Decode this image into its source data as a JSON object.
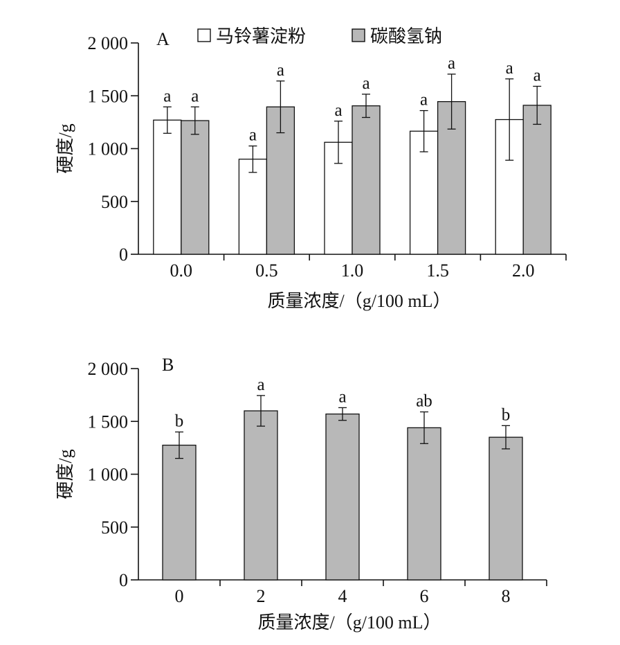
{
  "colors": {
    "series_white": "#ffffff",
    "series_gray": "#b8b8b8",
    "axis": "#111111"
  },
  "chart_data": [
    {
      "type": "bar",
      "panel_label": "A",
      "categories": [
        "0.0",
        "0.5",
        "1.0",
        "1.5",
        "2.0"
      ],
      "xlabel": "质量浓度/（g/100 mL）",
      "ylabel": "硬度/g",
      "ylim": [
        0,
        2000
      ],
      "yticks": [
        0,
        500,
        1000,
        1500,
        2000
      ],
      "ytick_labels": [
        "0",
        "500",
        "1 000",
        "1 500",
        "2 000"
      ],
      "legend_position": "top",
      "series": [
        {
          "name": "马铃薯淀粉",
          "color": "#ffffff",
          "values": [
            1270,
            900,
            1060,
            1165,
            1275
          ],
          "errors": [
            125,
            125,
            200,
            195,
            385
          ],
          "letters": [
            "a",
            "a",
            "a",
            "a",
            "a"
          ]
        },
        {
          "name": "碳酸氢钠",
          "color": "#b8b8b8",
          "values": [
            1265,
            1395,
            1405,
            1445,
            1410
          ],
          "errors": [
            130,
            245,
            110,
            260,
            180
          ],
          "letters": [
            "a",
            "a",
            "a",
            "a",
            "a"
          ]
        }
      ]
    },
    {
      "type": "bar",
      "panel_label": "B",
      "categories": [
        "0",
        "2",
        "4",
        "6",
        "8"
      ],
      "xlabel": "质量浓度/（g/100 mL）",
      "ylabel": "硬度/g",
      "ylim": [
        0,
        2000
      ],
      "yticks": [
        0,
        500,
        1000,
        1500,
        2000
      ],
      "ytick_labels": [
        "0",
        "500",
        "1 000",
        "1 500",
        "2 000"
      ],
      "series": [
        {
          "name": "",
          "color": "#b8b8b8",
          "values": [
            1275,
            1600,
            1570,
            1440,
            1350
          ],
          "errors": [
            125,
            145,
            60,
            150,
            110
          ],
          "letters": [
            "b",
            "a",
            "a",
            "ab",
            "b"
          ]
        }
      ]
    }
  ]
}
